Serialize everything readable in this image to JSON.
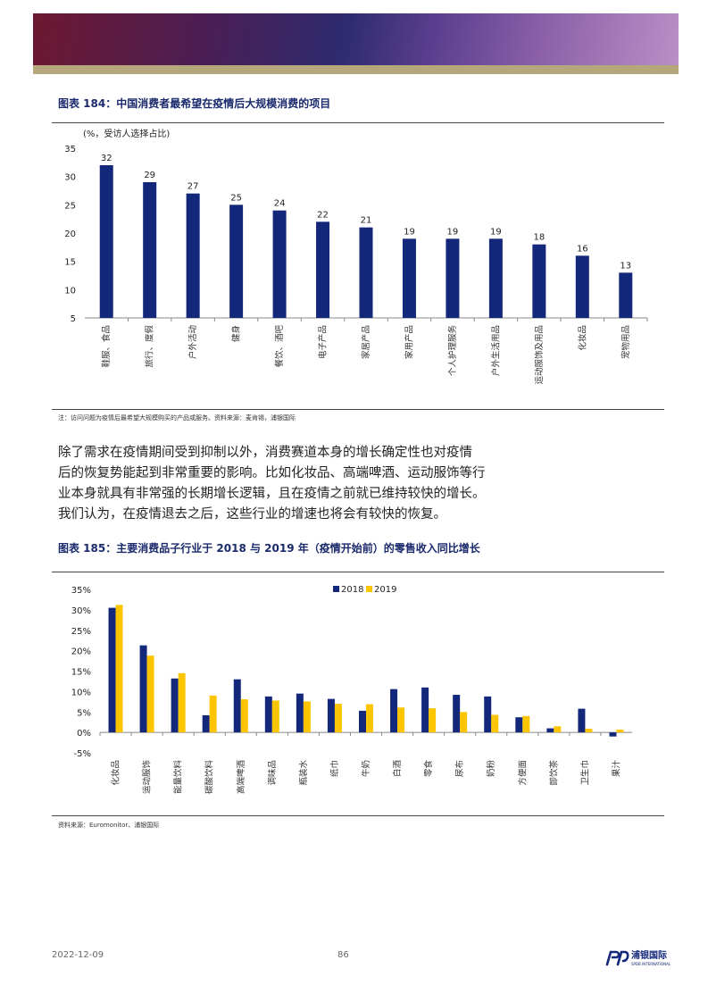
{
  "figure1": {
    "title": "图表 184：中国消费者最希望在疫情后大规模消费的项目",
    "unit_label": "(%，受访人选择占比)",
    "note": "注：访问问题为疫情后最希望大规模购买的产品或服务。资料来源：麦肯锡，浦银国际"
  },
  "paragraph": [
    "除了需求在疫情期间受到抑制以外，消费赛道本身的增长确定性也对疫情",
    "后的恢复势能起到非常重要的影响。比如化妆品、高端啤酒、运动服饰等行",
    "业本身就具有非常强的长期增长逻辑，且在疫情之前就已维持较快的增长。",
    "我们认为，在疫情退去之后，这些行业的增速也将会有较快的恢复。"
  ],
  "figure2": {
    "title": "图表 185：主要消费品子行业于 2018 与 2019 年（疫情开始前）的零售收入同比增长",
    "note": "资料来源：Euromonitor、浦银国际"
  },
  "chart_data": [
    {
      "type": "bar",
      "categories": [
        "鞋服、食品",
        "旅行、度假",
        "户外活动",
        "健身",
        "餐饮、酒吧",
        "电子产品",
        "家居产品",
        "家用产品",
        "个人护理服务",
        "户外生活用品",
        "运动服饰及用品",
        "化妆品",
        "宠物用品"
      ],
      "values": [
        32,
        29,
        27,
        25,
        24,
        22,
        21,
        19,
        19,
        19,
        18,
        16,
        13
      ],
      "ylim": [
        5,
        35
      ],
      "yticks": [
        "5",
        "10",
        "15",
        "20",
        "25",
        "30",
        "35"
      ],
      "data_labels": [
        "32",
        "29",
        "27",
        "25",
        "24",
        "22",
        "21",
        "19",
        "19",
        "19",
        "18",
        "16",
        "13"
      ],
      "colors": {
        "bar": "#13287a"
      },
      "grid": false
    },
    {
      "type": "bar",
      "categories": [
        "化妆品",
        "运动服饰",
        "能量饮料",
        "碳酸饮料",
        "高端啤酒",
        "调味品",
        "瓶装水",
        "纸巾",
        "牛奶",
        "白酒",
        "零食",
        "尿布",
        "奶粉",
        "方便面",
        "即饮茶",
        "卫生巾",
        "果汁"
      ],
      "series": [
        {
          "name": "2018",
          "values": [
            30.5,
            21.3,
            13.2,
            4.2,
            13.0,
            8.8,
            9.5,
            8.2,
            5.3,
            10.6,
            11.0,
            9.2,
            8.8,
            3.7,
            1.0,
            5.8,
            -1.0
          ]
        },
        {
          "name": "2019",
          "values": [
            31.2,
            18.8,
            14.5,
            9.0,
            8.1,
            7.8,
            7.6,
            7.0,
            6.9,
            6.1,
            5.9,
            5.0,
            4.3,
            4.0,
            1.5,
            0.9,
            0.7
          ]
        }
      ],
      "ylim": [
        -5,
        35
      ],
      "yticks": [
        "-5%",
        "0%",
        "5%",
        "10%",
        "15%",
        "20%",
        "25%",
        "30%",
        "35%"
      ],
      "legend": "top-center",
      "colors": {
        "2018": "#13287a",
        "2019": "#fdc500"
      },
      "grid": false
    }
  ],
  "footer": {
    "date": "2022-12-09",
    "page": "86",
    "logo_text": "浦银国际",
    "logo_sub": "SPDB INTERNATIONAL"
  }
}
